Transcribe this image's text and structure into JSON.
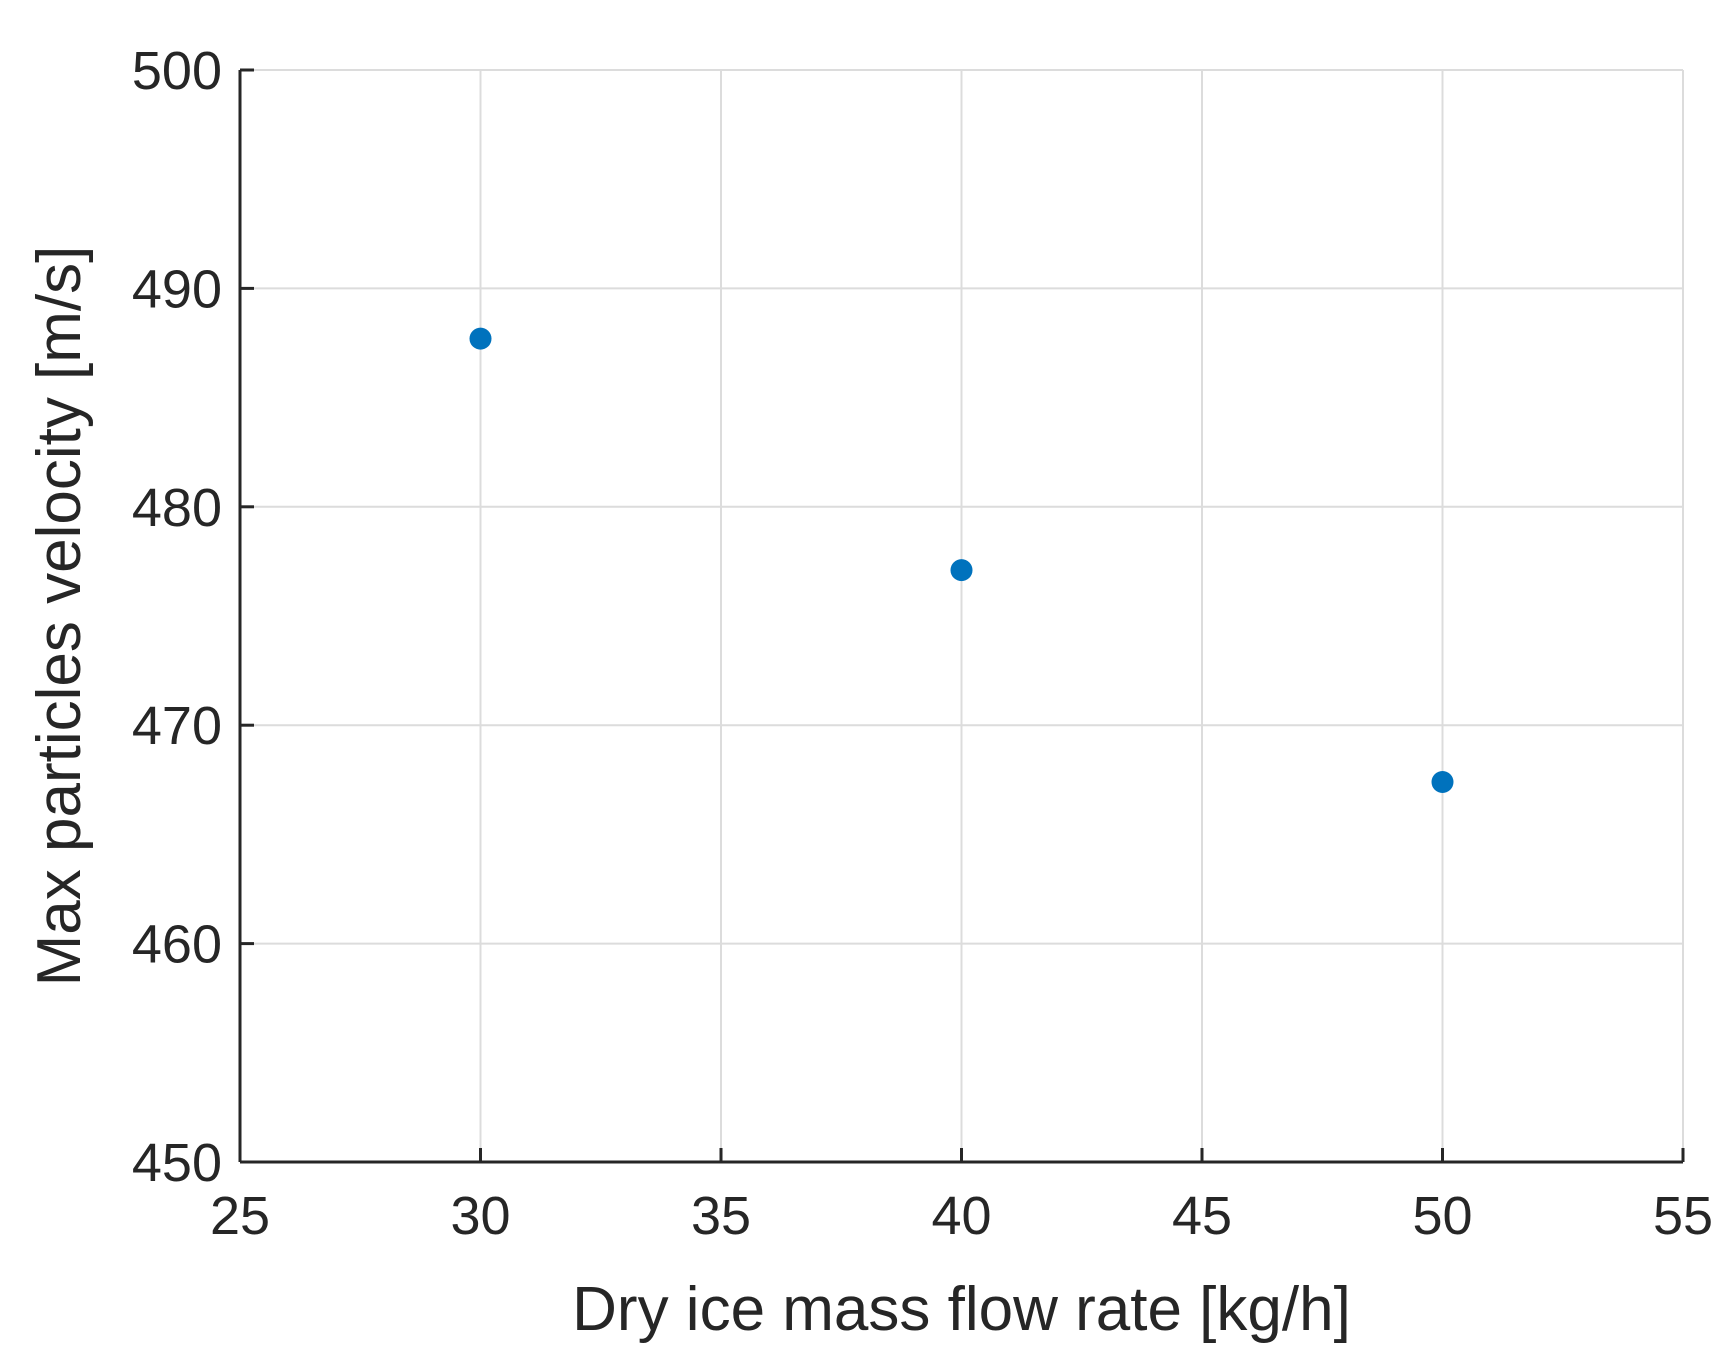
{
  "chart_data": {
    "type": "scatter",
    "title": "",
    "xlabel": "Dry ice mass flow rate [kg/h]",
    "ylabel": "Max particles velocity [m/s]",
    "xlim": [
      25,
      55
    ],
    "ylim": [
      450,
      500
    ],
    "xticks": [
      25,
      30,
      35,
      40,
      45,
      50,
      55
    ],
    "yticks": [
      450,
      460,
      470,
      480,
      490,
      500
    ],
    "grid": true,
    "series": [
      {
        "name": "",
        "color": "#0072BD",
        "x": [
          30,
          40,
          50
        ],
        "y": [
          487.7,
          477.1,
          467.4
        ]
      }
    ]
  }
}
